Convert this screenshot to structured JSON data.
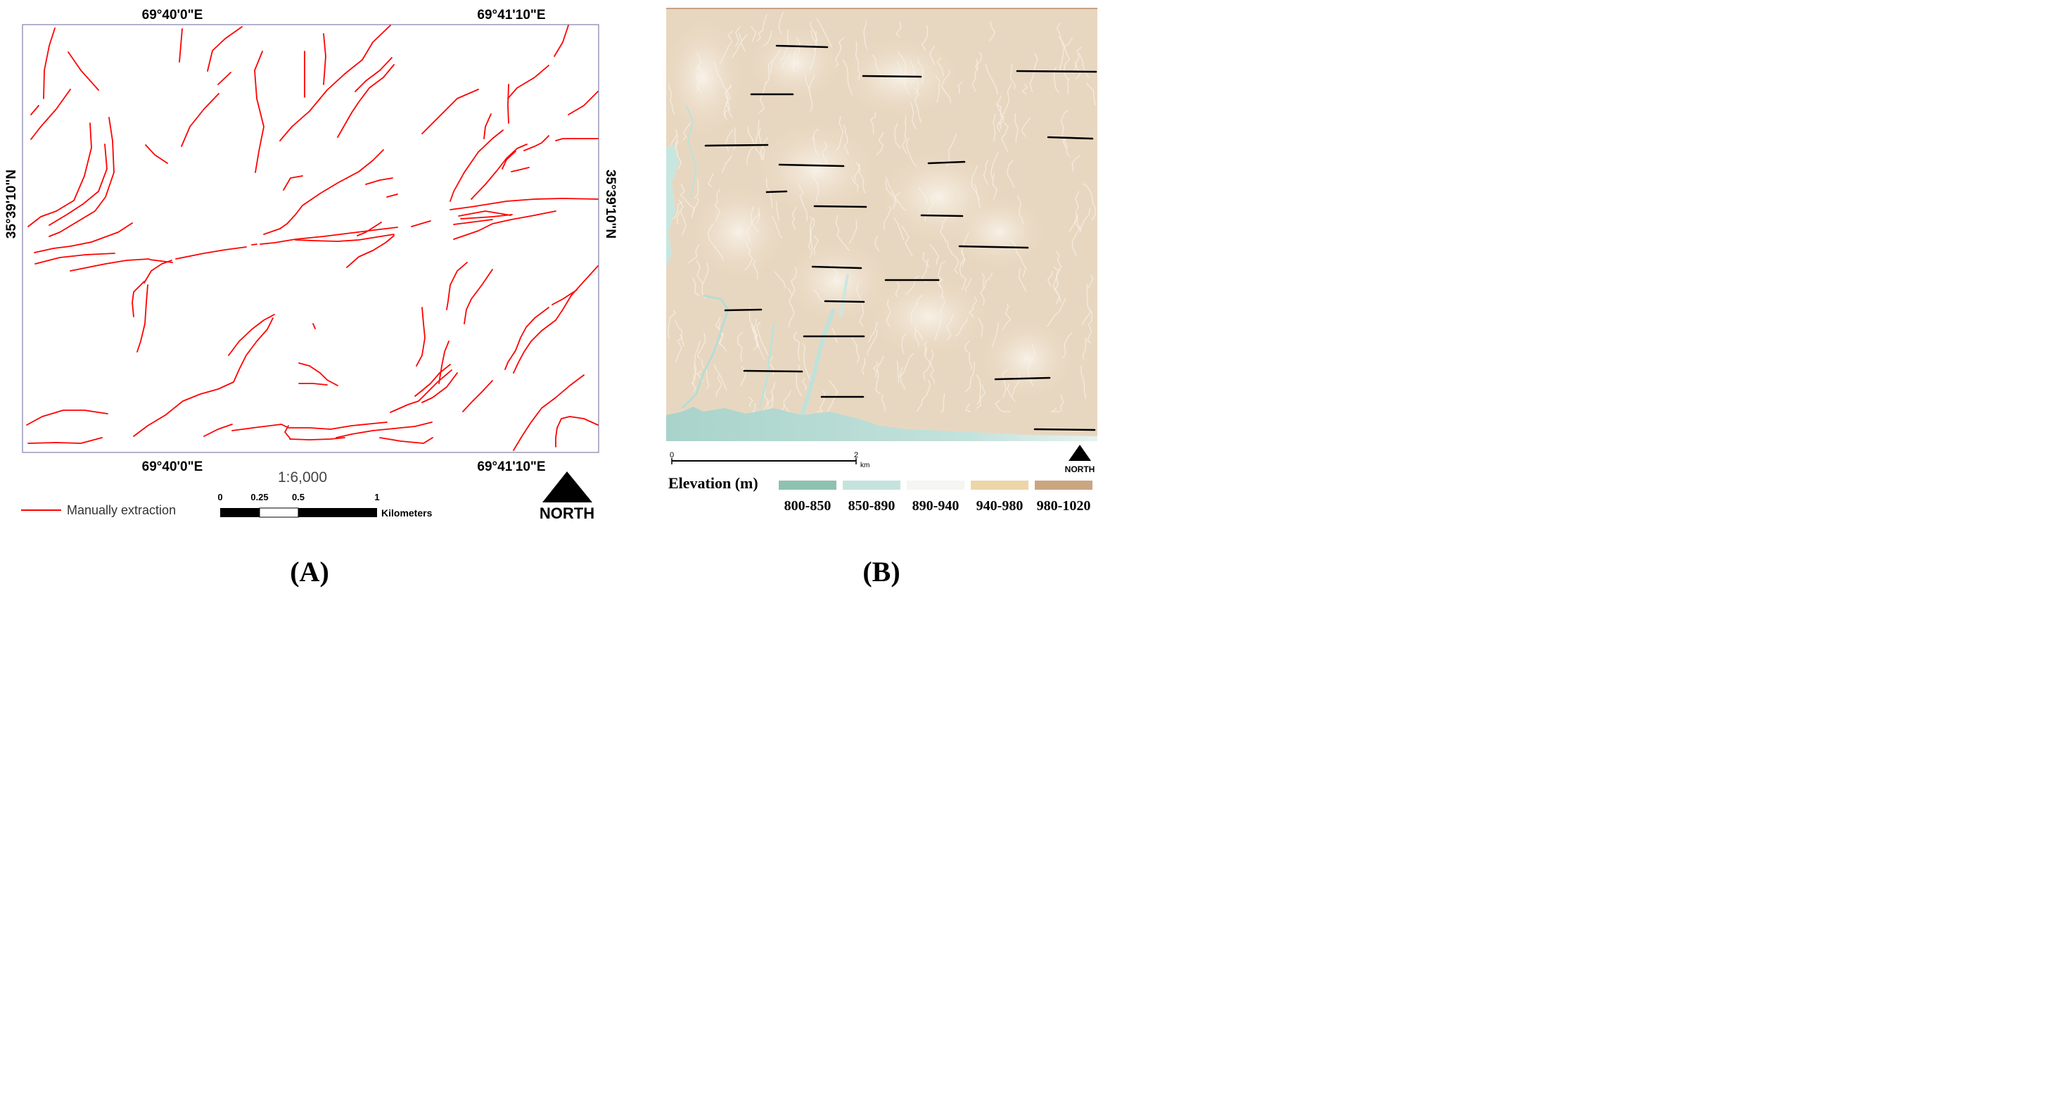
{
  "panel_a": {
    "coords": {
      "top_left": "69°40'0\"E",
      "top_right": "69°41'10\"E",
      "bottom_left": "69°40'0\"E",
      "bottom_right": "69°41'10\"E",
      "left": "35°39'10\"N",
      "right": "35°39'10\"N"
    },
    "scale_ratio": "1:6,000",
    "scalebar": {
      "ticks": [
        "0",
        "0.25",
        "0.5",
        "1"
      ],
      "unit": "Kilometers"
    },
    "legend_label": "Manually extraction",
    "north_label": "NORTH",
    "caption": "(A)",
    "colors": {
      "lineament": "#ff0000",
      "frame": "#9999bb"
    }
  },
  "panel_b": {
    "scalebar": {
      "ticks": [
        "0",
        "2"
      ],
      "unit": "km"
    },
    "north_label": "NORTH",
    "legend_title": "Elevation (m)",
    "elevation_classes": [
      {
        "label": "800-850",
        "color": "#8fc1b0"
      },
      {
        "label": "850-890",
        "color": "#c5e3dc"
      },
      {
        "label": "890-940",
        "color": "#f5f5f3"
      },
      {
        "label": "940-980",
        "color": "#ecd6a9"
      },
      {
        "label": "980-1020",
        "color": "#c9a582"
      }
    ],
    "caption": "(B)",
    "colors": {
      "water": "#b7dcd6",
      "terrain": "#e8d7c0",
      "lineament": "#000000"
    }
  }
}
